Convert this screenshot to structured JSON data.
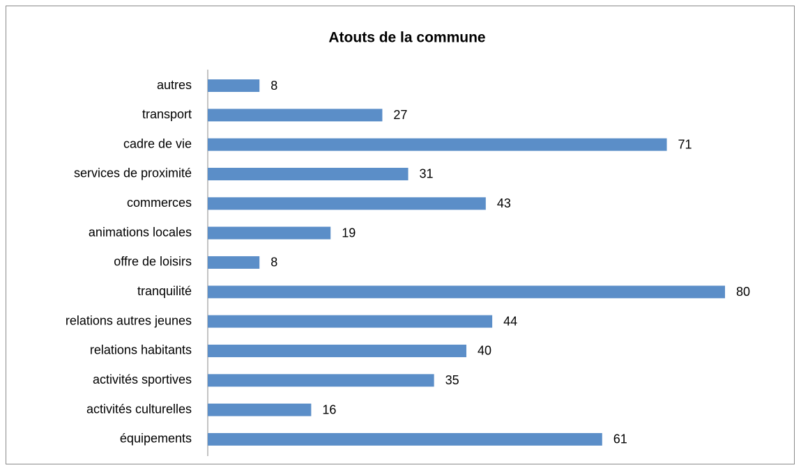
{
  "chart_data": {
    "type": "bar",
    "orientation": "horizontal",
    "title": "Atouts de la commune",
    "categories": [
      "autres",
      "transport",
      "cadre de vie",
      "services de proximité",
      "commerces",
      "animations locales",
      "offre de loisirs",
      "tranquilité",
      "relations autres jeunes",
      "relations habitants",
      "activités sportives",
      "activités culturelles",
      "équipements"
    ],
    "values": [
      8,
      27,
      71,
      31,
      43,
      19,
      8,
      80,
      44,
      40,
      35,
      16,
      61
    ],
    "color": "#5b8ec8"
  }
}
